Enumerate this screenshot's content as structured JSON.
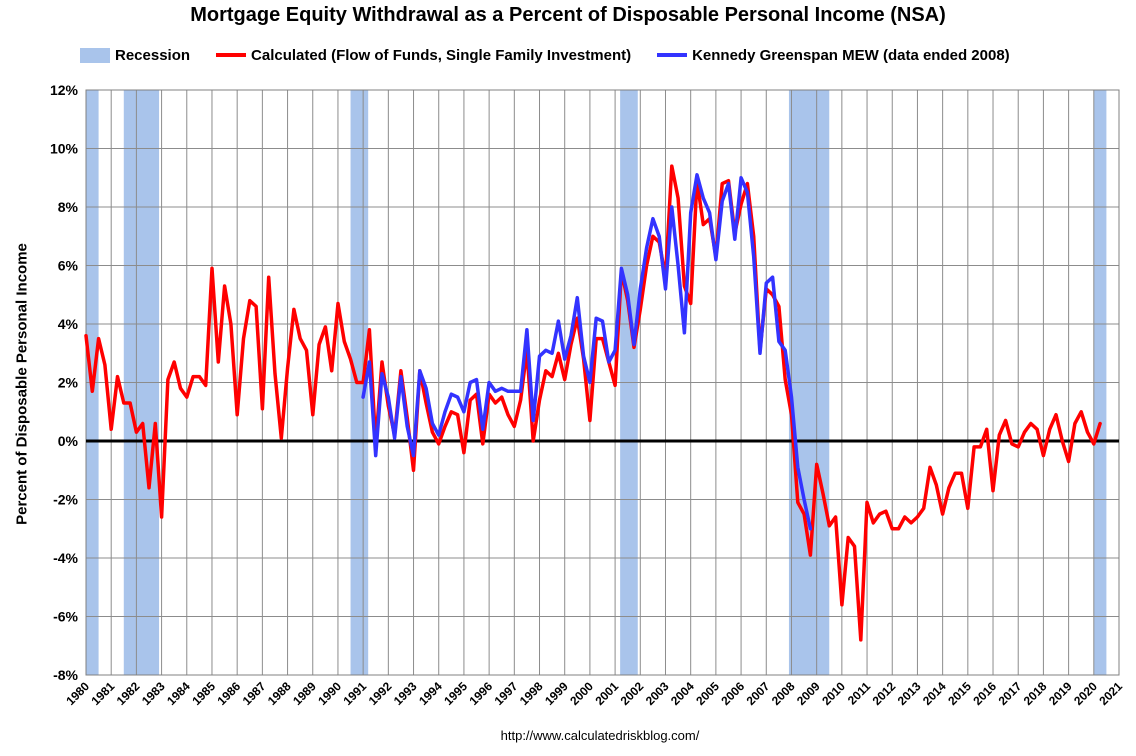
{
  "chart_data": {
    "type": "line",
    "title": "Mortgage Equity Withdrawal as a Percent of Disposable Personal Income (NSA)",
    "ylabel": "Percent of Disposable Personal Income",
    "xlim": [
      1980,
      2021
    ],
    "ylim": [
      -8,
      12
    ],
    "y_ticks": [
      -8,
      -6,
      -4,
      -2,
      0,
      2,
      4,
      6,
      8,
      10,
      12
    ],
    "y_tick_labels": [
      "-8%",
      "-6%",
      "-4%",
      "-2%",
      "0%",
      "2%",
      "4%",
      "6%",
      "8%",
      "10%",
      "12%"
    ],
    "x_ticks": [
      1980,
      1981,
      1982,
      1983,
      1984,
      1985,
      1986,
      1987,
      1988,
      1989,
      1990,
      1991,
      1992,
      1993,
      1994,
      1995,
      1996,
      1997,
      1998,
      1999,
      2000,
      2001,
      2002,
      2003,
      2004,
      2005,
      2006,
      2007,
      2008,
      2009,
      2010,
      2011,
      2012,
      2013,
      2014,
      2015,
      2016,
      2017,
      2018,
      2019,
      2020,
      2021
    ],
    "x_tick_labels": [
      "1980",
      "1981",
      "1982",
      "1983",
      "1984",
      "1985",
      "1986",
      "1987",
      "1988",
      "1989",
      "1990",
      "1991",
      "1992",
      "1993",
      "1994",
      "1995",
      "1996",
      "1997",
      "1998",
      "1999",
      "2000",
      "2001",
      "2002",
      "2003",
      "2004",
      "2005",
      "2006",
      "2007",
      "2008",
      "2009",
      "2010",
      "2011",
      "2012",
      "2013",
      "2014",
      "2015",
      "2016",
      "2017",
      "2018",
      "2019",
      "2020",
      "2021"
    ],
    "grid": true,
    "legend": {
      "position": "top",
      "entries": [
        {
          "label": "Recession",
          "kind": "box",
          "color": "#a9c4eb"
        },
        {
          "label": "Calculated (Flow of Funds, Single Family Investment)",
          "kind": "line",
          "color": "#ff0000"
        },
        {
          "label": "Kennedy Greenspan MEW (data ended 2008)",
          "kind": "line",
          "color": "#3333ff"
        }
      ]
    },
    "recessions": [
      {
        "start": 1980.0,
        "end": 1980.5
      },
      {
        "start": 1981.5,
        "end": 1982.9
      },
      {
        "start": 1990.5,
        "end": 1991.2
      },
      {
        "start": 2001.2,
        "end": 2001.9
      },
      {
        "start": 2007.9,
        "end": 2009.5
      },
      {
        "start": 2020.0,
        "end": 2020.5
      }
    ],
    "series": [
      {
        "name": "Calculated (Flow of Funds, Single Family Investment)",
        "color": "#ff0000",
        "x": [
          1980.0,
          1980.25,
          1980.5,
          1980.75,
          1981.0,
          1981.25,
          1981.5,
          1981.75,
          1982.0,
          1982.25,
          1982.5,
          1982.75,
          1983.0,
          1983.25,
          1983.5,
          1983.75,
          1984.0,
          1984.25,
          1984.5,
          1984.75,
          1985.0,
          1985.25,
          1985.5,
          1985.75,
          1986.0,
          1986.25,
          1986.5,
          1986.75,
          1987.0,
          1987.25,
          1987.5,
          1987.75,
          1988.0,
          1988.25,
          1988.5,
          1988.75,
          1989.0,
          1989.25,
          1989.5,
          1989.75,
          1990.0,
          1990.25,
          1990.5,
          1990.75,
          1991.0,
          1991.25,
          1991.5,
          1991.75,
          1992.0,
          1992.25,
          1992.5,
          1992.75,
          1993.0,
          1993.25,
          1993.5,
          1993.75,
          1994.0,
          1994.25,
          1994.5,
          1994.75,
          1995.0,
          1995.25,
          1995.5,
          1995.75,
          1996.0,
          1996.25,
          1996.5,
          1996.75,
          1997.0,
          1997.25,
          1997.5,
          1997.75,
          1998.0,
          1998.25,
          1998.5,
          1998.75,
          1999.0,
          1999.25,
          1999.5,
          1999.75,
          2000.0,
          2000.25,
          2000.5,
          2000.75,
          2001.0,
          2001.25,
          2001.5,
          2001.75,
          2002.0,
          2002.25,
          2002.5,
          2002.75,
          2003.0,
          2003.25,
          2003.5,
          2003.75,
          2004.0,
          2004.25,
          2004.5,
          2004.75,
          2005.0,
          2005.25,
          2005.5,
          2005.75,
          2006.0,
          2006.25,
          2006.5,
          2006.75,
          2007.0,
          2007.25,
          2007.5,
          2007.75,
          2008.0,
          2008.25,
          2008.5,
          2008.75,
          2009.0,
          2009.25,
          2009.5,
          2009.75,
          2010.0,
          2010.25,
          2010.5,
          2010.75,
          2011.0,
          2011.25,
          2011.5,
          2011.75,
          2012.0,
          2012.25,
          2012.5,
          2012.75,
          2013.0,
          2013.25,
          2013.5,
          2013.75,
          2014.0,
          2014.25,
          2014.5,
          2014.75,
          2015.0,
          2015.25,
          2015.5,
          2015.75,
          2016.0,
          2016.25,
          2016.5,
          2016.75,
          2017.0,
          2017.25,
          2017.5,
          2017.75,
          2018.0,
          2018.25,
          2018.5,
          2018.75,
          2019.0,
          2019.25,
          2019.5,
          2019.75,
          2020.0,
          2020.25
        ],
        "values": [
          3.6,
          1.7,
          3.5,
          2.6,
          0.4,
          2.2,
          1.3,
          1.3,
          0.3,
          0.6,
          -1.6,
          0.6,
          -2.6,
          2.1,
          2.7,
          1.8,
          1.5,
          2.2,
          2.2,
          1.9,
          5.9,
          2.7,
          5.3,
          4.0,
          0.9,
          3.5,
          4.8,
          4.6,
          1.1,
          5.6,
          2.3,
          0.1,
          2.5,
          4.5,
          3.5,
          3.1,
          0.9,
          3.3,
          3.9,
          2.4,
          4.7,
          3.4,
          2.8,
          2.0,
          2.0,
          3.8,
          -0.1,
          2.7,
          1.2,
          0.2,
          2.4,
          0.8,
          -1.0,
          2.4,
          1.3,
          0.3,
          -0.1,
          0.5,
          1.0,
          0.9,
          -0.4,
          1.4,
          1.6,
          -0.1,
          1.6,
          1.3,
          1.5,
          0.9,
          0.5,
          1.4,
          3.1,
          0.0,
          1.4,
          2.4,
          2.2,
          3.0,
          2.1,
          3.3,
          4.2,
          2.8,
          0.7,
          3.5,
          3.5,
          2.7,
          1.9,
          5.8,
          4.8,
          3.2,
          4.5,
          6.0,
          7.0,
          6.8,
          5.6,
          9.4,
          8.3,
          5.3,
          4.7,
          8.9,
          7.4,
          7.6,
          6.3,
          8.8,
          8.9,
          7.1,
          8.1,
          8.8,
          7.0,
          3.1,
          5.2,
          5.0,
          4.6,
          2.1,
          0.9,
          -2.1,
          -2.5,
          -3.9,
          -0.8,
          -1.8,
          -2.9,
          -2.6,
          -5.6,
          -3.3,
          -3.6,
          -6.8,
          -2.1,
          -2.8,
          -2.5,
          -2.4,
          -3.0,
          -3.0,
          -2.6,
          -2.8,
          -2.6,
          -2.3,
          -0.9,
          -1.5,
          -2.5,
          -1.6,
          -1.1,
          -1.1,
          -2.3,
          -0.2,
          -0.2,
          0.4,
          -1.7,
          0.2,
          0.7,
          -0.1,
          -0.2,
          0.3,
          0.6,
          0.4,
          -0.5,
          0.4,
          0.9,
          0.0,
          -0.7,
          0.6,
          1.0,
          0.3,
          -0.1,
          0.6
        ]
      },
      {
        "name": "Kennedy Greenspan MEW (data ended 2008)",
        "color": "#3333ff",
        "x": [
          1991.0,
          1991.25,
          1991.5,
          1991.75,
          1992.0,
          1992.25,
          1992.5,
          1992.75,
          1993.0,
          1993.25,
          1993.5,
          1993.75,
          1994.0,
          1994.25,
          1994.5,
          1994.75,
          1995.0,
          1995.25,
          1995.5,
          1995.75,
          1996.0,
          1996.25,
          1996.5,
          1996.75,
          1997.0,
          1997.25,
          1997.5,
          1997.75,
          1998.0,
          1998.25,
          1998.5,
          1998.75,
          1999.0,
          1999.25,
          1999.5,
          1999.75,
          2000.0,
          2000.25,
          2000.5,
          2000.75,
          2001.0,
          2001.25,
          2001.5,
          2001.75,
          2002.0,
          2002.25,
          2002.5,
          2002.75,
          2003.0,
          2003.25,
          2003.5,
          2003.75,
          2004.0,
          2004.25,
          2004.5,
          2004.75,
          2005.0,
          2005.25,
          2005.5,
          2005.75,
          2006.0,
          2006.25,
          2006.5,
          2006.75,
          2007.0,
          2007.25,
          2007.5,
          2007.75,
          2008.0,
          2008.25,
          2008.5,
          2008.75
        ],
        "values": [
          1.5,
          2.7,
          -0.5,
          2.3,
          1.5,
          0.1,
          2.2,
          0.5,
          -0.5,
          2.4,
          1.8,
          0.6,
          0.2,
          1.0,
          1.6,
          1.5,
          1.0,
          2.0,
          2.1,
          0.4,
          2.0,
          1.7,
          1.8,
          1.7,
          1.7,
          1.7,
          3.8,
          0.7,
          2.9,
          3.1,
          3.0,
          4.1,
          2.8,
          3.6,
          4.9,
          2.9,
          2.0,
          4.2,
          4.1,
          2.7,
          3.1,
          5.9,
          5.0,
          3.3,
          5.2,
          6.6,
          7.6,
          7.0,
          5.2,
          8.0,
          6.0,
          3.7,
          7.8,
          9.1,
          8.3,
          7.8,
          6.2,
          8.2,
          8.8,
          6.9,
          9.0,
          8.5,
          6.3,
          3.0,
          5.4,
          5.6,
          3.4,
          3.1,
          1.5,
          -0.9,
          -2.0,
          -3.0
        ]
      }
    ],
    "source": "http://www.calculatedriskblog.com/"
  }
}
